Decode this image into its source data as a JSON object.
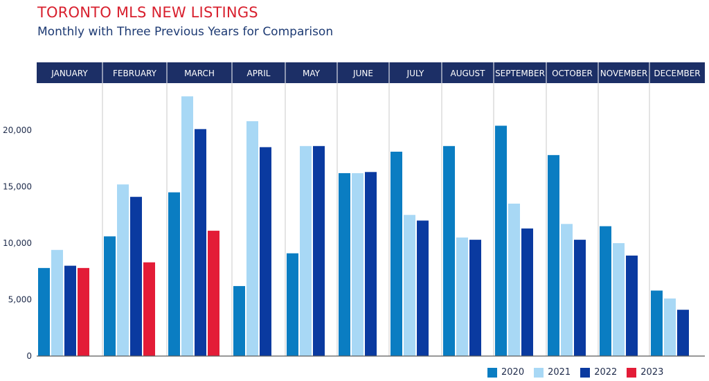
{
  "title": "TORONTO MLS NEW LISTINGS",
  "subtitle": "Monthly with Three Previous Years for Comparison",
  "colors": {
    "2020": "#0a7dc2",
    "2021": "#a8d8f5",
    "2022": "#0a3aa0",
    "2023": "#e31c37",
    "header": "#1c2f66"
  },
  "chart_data": {
    "type": "bar",
    "categories": [
      "JANUARY",
      "FEBRUARY",
      "MARCH",
      "APRIL",
      "MAY",
      "JUNE",
      "JULY",
      "AUGUST",
      "SEPTEMBER",
      "OCTOBER",
      "NOVEMBER",
      "DECEMBER"
    ],
    "series": [
      {
        "name": "2020",
        "values": [
          7800,
          10600,
          14500,
          6200,
          9100,
          16200,
          18100,
          18600,
          20400,
          17800,
          11500,
          5800
        ]
      },
      {
        "name": "2021",
        "values": [
          9400,
          15200,
          23000,
          20800,
          18600,
          16200,
          12500,
          10500,
          13500,
          11700,
          10000,
          5100
        ]
      },
      {
        "name": "2022",
        "values": [
          8000,
          14100,
          20100,
          18500,
          18600,
          16300,
          12000,
          10300,
          11300,
          10300,
          8900,
          4100
        ]
      },
      {
        "name": "2023",
        "values": [
          7800,
          8300,
          11100,
          null,
          null,
          null,
          null,
          null,
          null,
          null,
          null,
          null
        ]
      }
    ],
    "ylim": [
      0,
      23500
    ],
    "yticks": [
      "0",
      "5,000",
      "10,000",
      "15,000",
      "20,000"
    ],
    "ytick_values": [
      0,
      5000,
      10000,
      15000,
      20000
    ],
    "grid": false,
    "legend": "bottom-right"
  }
}
